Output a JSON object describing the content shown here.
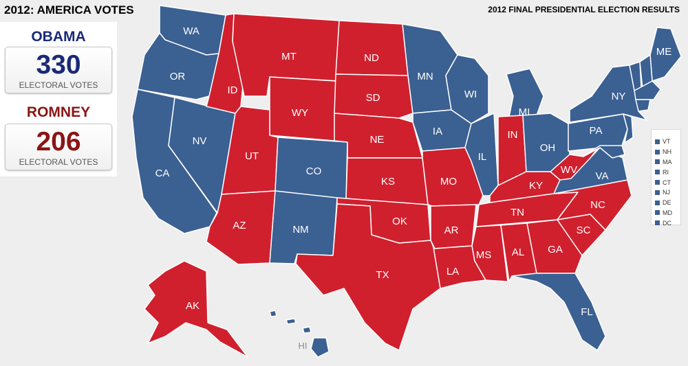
{
  "header": {
    "title": "2012: AMERICA VOTES",
    "subtitle": "2012 FINAL PRESIDENTIAL ELECTION RESULTS"
  },
  "colors": {
    "dem": "#3b6092",
    "rep": "#d0202e",
    "background": "#eeeeee"
  },
  "candidates": [
    {
      "name": "OBAMA",
      "votes": "330",
      "label": "ELECTORAL VOTES",
      "color": "#1a2a78"
    },
    {
      "name": "ROMNEY",
      "votes": "206",
      "label": "ELECTORAL VOTES",
      "color": "#8b1515"
    }
  ],
  "states": [
    {
      "abbr": "WA",
      "party": "dem"
    },
    {
      "abbr": "OR",
      "party": "dem"
    },
    {
      "abbr": "CA",
      "party": "dem"
    },
    {
      "abbr": "NV",
      "party": "dem"
    },
    {
      "abbr": "ID",
      "party": "rep"
    },
    {
      "abbr": "MT",
      "party": "rep"
    },
    {
      "abbr": "WY",
      "party": "rep"
    },
    {
      "abbr": "UT",
      "party": "rep"
    },
    {
      "abbr": "AZ",
      "party": "rep"
    },
    {
      "abbr": "CO",
      "party": "dem"
    },
    {
      "abbr": "NM",
      "party": "dem"
    },
    {
      "abbr": "ND",
      "party": "rep"
    },
    {
      "abbr": "SD",
      "party": "rep"
    },
    {
      "abbr": "NE",
      "party": "rep"
    },
    {
      "abbr": "KS",
      "party": "rep"
    },
    {
      "abbr": "OK",
      "party": "rep"
    },
    {
      "abbr": "TX",
      "party": "rep"
    },
    {
      "abbr": "MN",
      "party": "dem"
    },
    {
      "abbr": "IA",
      "party": "dem"
    },
    {
      "abbr": "MO",
      "party": "rep"
    },
    {
      "abbr": "AR",
      "party": "rep"
    },
    {
      "abbr": "LA",
      "party": "rep"
    },
    {
      "abbr": "WI",
      "party": "dem"
    },
    {
      "abbr": "IL",
      "party": "dem"
    },
    {
      "abbr": "MI",
      "party": "dem"
    },
    {
      "abbr": "IN",
      "party": "rep"
    },
    {
      "abbr": "OH",
      "party": "dem"
    },
    {
      "abbr": "KY",
      "party": "rep"
    },
    {
      "abbr": "TN",
      "party": "rep"
    },
    {
      "abbr": "MS",
      "party": "rep"
    },
    {
      "abbr": "AL",
      "party": "rep"
    },
    {
      "abbr": "GA",
      "party": "rep"
    },
    {
      "abbr": "FL",
      "party": "dem"
    },
    {
      "abbr": "SC",
      "party": "rep"
    },
    {
      "abbr": "NC",
      "party": "rep"
    },
    {
      "abbr": "VA",
      "party": "dem"
    },
    {
      "abbr": "WV",
      "party": "rep"
    },
    {
      "abbr": "PA",
      "party": "dem"
    },
    {
      "abbr": "NY",
      "party": "dem"
    },
    {
      "abbr": "ME",
      "party": "dem"
    },
    {
      "abbr": "AK",
      "party": "rep"
    },
    {
      "abbr": "HI",
      "party": "dem"
    }
  ],
  "small_states": [
    "VT",
    "NH",
    "MA",
    "RI",
    "CT",
    "NJ",
    "DE",
    "MD",
    "DC"
  ]
}
